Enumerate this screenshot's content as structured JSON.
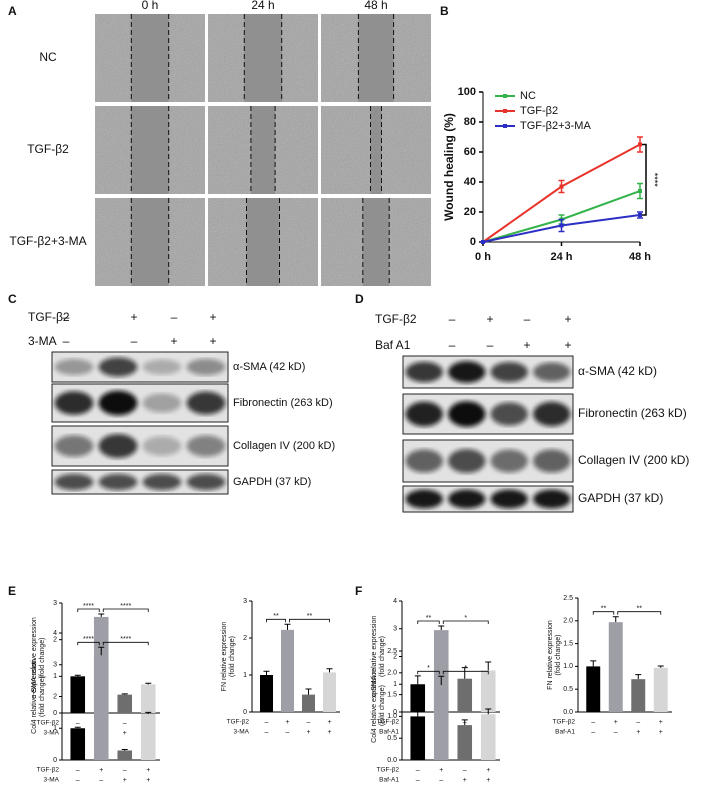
{
  "panel_labels": [
    "A",
    "B",
    "C",
    "D",
    "E",
    "F"
  ],
  "wound_panel": {
    "columns": [
      "0 h",
      "24 h",
      "48 h"
    ],
    "rows": [
      "NC",
      "TGF-β2",
      "TGF-β2+3-MA"
    ]
  },
  "blot_panels": [
    {
      "conditions": [
        {
          "name": "TGF-β2",
          "signs": [
            "–",
            "+",
            "–",
            "+"
          ]
        },
        {
          "name": "3-MA",
          "signs": [
            "–",
            "–",
            "+",
            "+"
          ]
        }
      ],
      "bands": [
        "α-SMA (42 kD)",
        "Fibronectin (263 kD)",
        "Collagen IV (200 kD)",
        "GAPDH (37 kD)"
      ]
    },
    {
      "conditions": [
        {
          "name": "TGF-β2",
          "signs": [
            "–",
            "+",
            "–",
            "+"
          ]
        },
        {
          "name": "Baf A1",
          "signs": [
            "–",
            "–",
            "+",
            "+"
          ]
        }
      ],
      "bands": [
        "α-SMA (42 kD)",
        "Fibronectin (263 kD)",
        "Collagen IV (200 kD)",
        "GAPDH (37 kD)"
      ]
    }
  ],
  "chart_data": [
    {
      "type": "line",
      "ylabel": "Wound healing (%)",
      "categories": [
        "0 h",
        "24 h",
        "48 h"
      ],
      "ylim": [
        0,
        100
      ],
      "yticks": [
        0,
        20,
        40,
        60,
        80,
        100
      ],
      "series": [
        {
          "name": "NC",
          "color": "#33b34a",
          "values": [
            0,
            15,
            34
          ],
          "errors": [
            0,
            3,
            5
          ]
        },
        {
          "name": "TGF-β2",
          "color": "#e8332a",
          "values": [
            0,
            37,
            65
          ],
          "errors": [
            0,
            4,
            5
          ]
        },
        {
          "name": "TGF-β2+3-MA",
          "color": "#2b2fc4",
          "values": [
            0,
            11,
            18
          ],
          "errors": [
            0,
            4,
            2
          ]
        }
      ],
      "annotation": "****"
    },
    {
      "type": "bar",
      "ylabel": [
        "α-SMA relative expression",
        "(fold change)"
      ],
      "ylim": [
        0,
        3
      ],
      "yticks": [
        0,
        1,
        2,
        3
      ],
      "values": [
        1.0,
        2.62,
        0.5,
        0.78
      ],
      "errors": [
        0.03,
        0.08,
        0.02,
        0.03
      ],
      "colors": [
        "#000000",
        "#9d9ea6",
        "#6e6e6e",
        "#d6d6d6"
      ],
      "annotations": [
        "****",
        "****"
      ],
      "conditions": [
        {
          "name": "TGF-β2",
          "signs": [
            "–",
            "+",
            "–",
            "+"
          ]
        },
        {
          "name": "3-MA",
          "signs": [
            "–",
            "–",
            "+",
            "+"
          ]
        }
      ]
    },
    {
      "type": "bar",
      "ylabel": [
        "FN relative expression",
        "(fold change)"
      ],
      "ylim": [
        0,
        3
      ],
      "yticks": [
        0,
        1,
        2,
        3
      ],
      "values": [
        1.0,
        2.22,
        0.47,
        1.07
      ],
      "errors": [
        0.1,
        0.15,
        0.15,
        0.1
      ],
      "colors": [
        "#000000",
        "#9d9ea6",
        "#6e6e6e",
        "#d6d6d6"
      ],
      "annotations": [
        "**",
        "**"
      ],
      "conditions": [
        {
          "name": "TGF-β2",
          "signs": [
            "–",
            "+",
            "–",
            "+"
          ]
        },
        {
          "name": "3-MA",
          "signs": [
            "–",
            "–",
            "+",
            "+"
          ]
        }
      ]
    },
    {
      "type": "bar",
      "ylabel": [
        "Col4 relative expression",
        "(fold change)"
      ],
      "ylim": [
        0,
        4
      ],
      "yticks": [
        0,
        1,
        2,
        3,
        4
      ],
      "values": [
        1.0,
        3.3,
        0.3,
        1.45
      ],
      "errors": [
        0.03,
        0.25,
        0.03,
        0.05
      ],
      "colors": [
        "#000000",
        "#9d9ea6",
        "#6e6e6e",
        "#d6d6d6"
      ],
      "annotations": [
        "****",
        "****"
      ],
      "conditions": [
        {
          "name": "TGF-β2",
          "signs": [
            "–",
            "+",
            "–",
            "+"
          ]
        },
        {
          "name": "3-MA",
          "signs": [
            "–",
            "–",
            "+",
            "+"
          ]
        }
      ]
    },
    {
      "type": "bar",
      "ylabel": [
        "α-SMA relative expression",
        "(fold change)"
      ],
      "ylim": [
        0,
        4
      ],
      "yticks": [
        0,
        1,
        2,
        3,
        4
      ],
      "values": [
        1.0,
        2.95,
        1.2,
        1.5
      ],
      "errors": [
        0.3,
        0.15,
        0.4,
        0.3
      ],
      "colors": [
        "#000000",
        "#9d9ea6",
        "#6e6e6e",
        "#d6d6d6"
      ],
      "annotations": [
        "**",
        "*"
      ],
      "conditions": [
        {
          "name": "TGF-β2",
          "signs": [
            "–",
            "+",
            "–",
            "+"
          ]
        },
        {
          "name": "Baf-A1",
          "signs": [
            "–",
            "–",
            "+",
            "+"
          ]
        }
      ]
    },
    {
      "type": "bar",
      "ylabel": [
        "FN relative expression",
        "(fold change)"
      ],
      "ylim": [
        0,
        2.5
      ],
      "yticks": [
        {
          "value": 0,
          "label": "0.0"
        },
        0.5,
        {
          "value": 1,
          "label": "1.0"
        },
        1.5,
        {
          "value": 2,
          "label": "2.0"
        },
        2.5
      ],
      "values": [
        1.0,
        1.97,
        0.72,
        0.97
      ],
      "errors": [
        0.12,
        0.12,
        0.1,
        0.04
      ],
      "colors": [
        "#000000",
        "#9d9ea6",
        "#6e6e6e",
        "#d6d6d6"
      ],
      "annotations": [
        "**",
        "**"
      ],
      "conditions": [
        {
          "name": "TGF-β2",
          "signs": [
            "–",
            "+",
            "–",
            "+"
          ]
        },
        {
          "name": "Baf-A1",
          "signs": [
            "–",
            "–",
            "+",
            "+"
          ]
        }
      ]
    },
    {
      "type": "bar",
      "ylabel": [
        "Col4 relative expression",
        "(fold change)"
      ],
      "ylim": [
        0,
        2.5
      ],
      "yticks": [
        {
          "value": 0,
          "label": "0.0"
        },
        0.5,
        {
          "value": 1,
          "label": "1.0"
        },
        1.5,
        {
          "value": 2,
          "label": "2.0"
        },
        2.5
      ],
      "values": [
        1.0,
        1.72,
        0.8,
        1.05
      ],
      "errors": [
        0.1,
        0.2,
        0.12,
        0.12
      ],
      "colors": [
        "#000000",
        "#9d9ea6",
        "#6e6e6e",
        "#d6d6d6"
      ],
      "annotations": [
        "*",
        "*"
      ],
      "conditions": [
        {
          "name": "TGF-β2",
          "signs": [
            "–",
            "+",
            "–",
            "+"
          ]
        },
        {
          "name": "Baf-A1",
          "signs": [
            "–",
            "–",
            "+",
            "+"
          ]
        }
      ]
    }
  ]
}
